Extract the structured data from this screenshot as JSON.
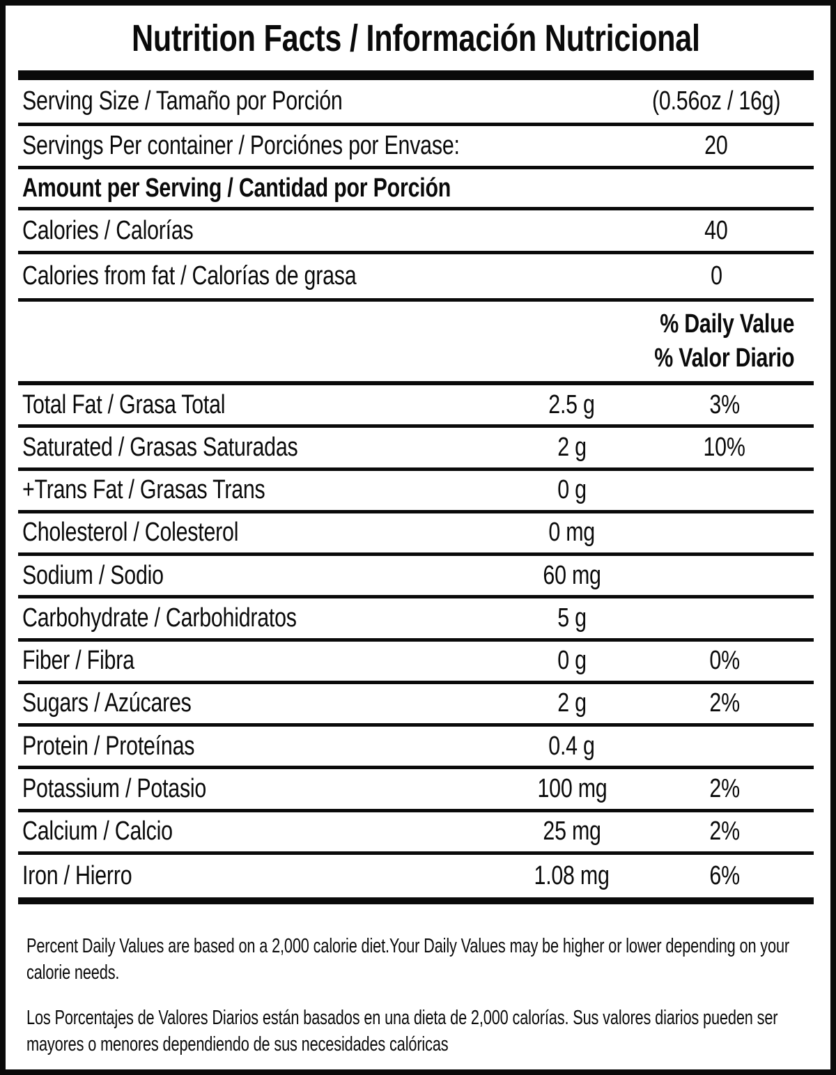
{
  "title": "Nutrition Facts / Información Nutricional",
  "serving": {
    "size_label": "Serving Size / Tamaño por Porción",
    "size_value": "(0.56oz / 16g)",
    "per_container_label": "Servings Per container / Porciónes por Envase:",
    "per_container_value": "20"
  },
  "amount_header": "Amount per Serving / Cantidad por Porción",
  "calories": {
    "label": "Calories / Calorías",
    "value": "40"
  },
  "calories_from_fat": {
    "label": "Calories from fat / Calorías de grasa",
    "value": "0"
  },
  "daily_value_header": {
    "line1": "% Daily Value",
    "line2": "% Valor Diario"
  },
  "nutrients": [
    {
      "label": "Total Fat / Grasa Total",
      "amount": "2.5 g",
      "dv": "3%"
    },
    {
      "label": "Saturated / Grasas Saturadas",
      "amount": "2 g",
      "dv": "10%"
    },
    {
      "label": "+Trans Fat / Grasas Trans",
      "amount": "0 g",
      "dv": ""
    },
    {
      "label": "Cholesterol / Colesterol",
      "amount": "0 mg",
      "dv": ""
    },
    {
      "label": "Sodium / Sodio",
      "amount": "60 mg",
      "dv": ""
    },
    {
      "label": "Carbohydrate / Carbohidratos",
      "amount": "5 g",
      "dv": ""
    },
    {
      "label": "Fiber / Fibra",
      "amount": "0 g",
      "dv": "0%"
    },
    {
      "label": "Sugars / Azúcares",
      "amount": "2 g",
      "dv": "2%"
    },
    {
      "label": "Protein / Proteínas",
      "amount": "0.4 g",
      "dv": ""
    },
    {
      "label": "Potassium / Potasio",
      "amount": "100 mg",
      "dv": "2%"
    },
    {
      "label": "Calcium / Calcio",
      "amount": "25 mg",
      "dv": "2%"
    },
    {
      "label": "Iron / Hierro",
      "amount": "1.08 mg",
      "dv": "6%"
    }
  ],
  "footnotes": {
    "english": {
      "line1": "Percent Daily Values are based on a 2,000 calorie diet.Your Daily Values may be higher or lower depending on your",
      "line2": "calorie needs."
    },
    "spanish": {
      "line1": "Los Porcentajes de Valores Diarios están basados en una dieta de 2,000 calorías. Sus valores diarios pueden ser",
      "line2": "mayores o menores dependiendo de sus necesidades calóricas"
    }
  },
  "colors": {
    "text": "#0a0a0a",
    "background": "#ffffff",
    "rule": "#0a0a0a"
  }
}
